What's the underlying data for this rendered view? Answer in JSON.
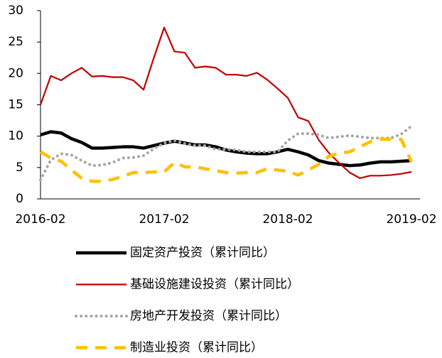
{
  "chart_data": {
    "type": "line",
    "categories": [
      "2016-02",
      null,
      null,
      null,
      null,
      null,
      null,
      null,
      null,
      null,
      null,
      null,
      "2017-02",
      null,
      null,
      null,
      null,
      null,
      null,
      null,
      null,
      null,
      null,
      null,
      "2018-02",
      null,
      null,
      null,
      null,
      null,
      null,
      null,
      null,
      null,
      null,
      null,
      "2019-02"
    ],
    "series": [
      {
        "name": "固定资产投资（累计同比）",
        "color": "#000000",
        "style": "solid",
        "values": [
          10.2,
          10.7,
          10.5,
          9.6,
          9.0,
          8.1,
          8.1,
          8.2,
          8.3,
          8.3,
          8.1,
          8.5,
          8.9,
          9.2,
          8.9,
          8.6,
          8.6,
          8.3,
          7.8,
          7.5,
          7.3,
          7.2,
          7.2,
          7.5,
          7.9,
          7.5,
          7.0,
          6.1,
          5.7,
          5.5,
          5.3,
          5.4,
          5.7,
          5.9,
          5.9,
          6.0,
          6.1
        ]
      },
      {
        "name": "基础设施建设投资（累计同比）",
        "color": "#c00000",
        "style": "double",
        "values": [
          15.0,
          19.6,
          18.9,
          20.0,
          20.9,
          19.5,
          19.6,
          19.4,
          19.4,
          18.9,
          17.4,
          22.5,
          27.3,
          23.5,
          23.3,
          20.9,
          21.1,
          20.9,
          19.8,
          19.8,
          19.6,
          20.1,
          19.0,
          17.6,
          16.1,
          13.0,
          12.4,
          9.4,
          7.3,
          5.7,
          4.2,
          3.3,
          3.7,
          3.7,
          3.8,
          4.0,
          4.3
        ]
      },
      {
        "name": "房地产开发投资（累计同比）",
        "color": "#a6a6a6",
        "style": "dotted",
        "values": [
          3.0,
          6.2,
          7.2,
          7.0,
          6.1,
          5.3,
          5.4,
          5.8,
          6.5,
          6.6,
          6.9,
          8.0,
          8.9,
          9.3,
          8.8,
          8.5,
          8.5,
          7.9,
          7.9,
          7.8,
          7.5,
          7.5,
          7.5,
          7.5,
          9.3,
          10.4,
          10.4,
          10.2,
          9.7,
          9.9,
          10.1,
          9.9,
          9.7,
          9.7,
          9.7,
          10.3,
          11.6
        ]
      },
      {
        "name": "制造业投资（累计同比）",
        "color": "#ffc000",
        "style": "dashed",
        "values": [
          7.5,
          6.5,
          6.0,
          4.6,
          3.3,
          2.8,
          2.8,
          3.1,
          3.6,
          4.2,
          4.2,
          4.3,
          4.3,
          5.8,
          5.1,
          5.1,
          4.8,
          4.5,
          4.2,
          4.1,
          4.2,
          4.2,
          4.8,
          4.6,
          4.4,
          3.8,
          4.6,
          5.5,
          6.8,
          7.3,
          7.5,
          8.3,
          9.1,
          9.5,
          9.5,
          9.5,
          5.9
        ]
      }
    ],
    "ylim": [
      0,
      30
    ],
    "yticks": [
      0,
      5,
      10,
      15,
      20,
      25,
      30
    ],
    "legend": "bottom"
  }
}
